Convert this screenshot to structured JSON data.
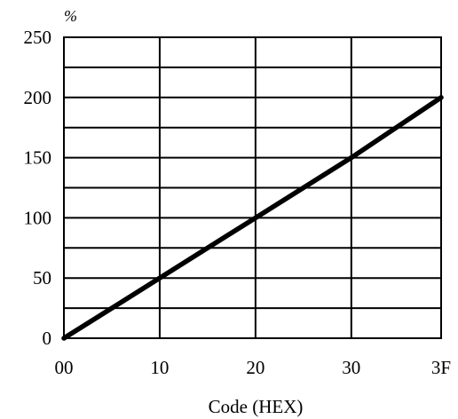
{
  "chart_data": {
    "type": "line",
    "title": "",
    "xlabel": "Code (HEX)",
    "ylabel": "%",
    "x_ticks": [
      "00",
      "10",
      "20",
      "30",
      "3F"
    ],
    "x_tick_values": [
      0,
      16,
      32,
      48,
      63
    ],
    "y_ticks": [
      "0",
      "50",
      "100",
      "150",
      "200",
      "250"
    ],
    "y_tick_values": [
      0,
      50,
      100,
      150,
      200,
      250
    ],
    "xlim": [
      0,
      63
    ],
    "ylim": [
      0,
      250
    ],
    "grid": true,
    "y_minor_gridlines": [
      25,
      75,
      125,
      175,
      225
    ],
    "series": [
      {
        "x": [
          0,
          16,
          32,
          48,
          63
        ],
        "y": [
          0,
          50,
          100,
          150,
          200
        ]
      }
    ],
    "colors": {
      "line": "#000000",
      "grid": "#000000",
      "background": "#ffffff"
    }
  }
}
